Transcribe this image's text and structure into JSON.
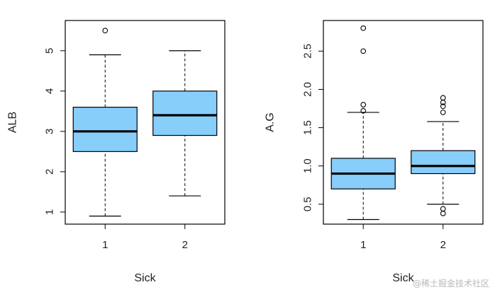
{
  "chart_data": [
    {
      "type": "box",
      "xlabel": "Sick",
      "ylabel": "ALB",
      "ylim": [
        0.7,
        5.75
      ],
      "y_ticks": [
        1,
        2,
        3,
        4,
        5
      ],
      "categories": [
        "1",
        "2"
      ],
      "boxes": [
        {
          "category": "1",
          "whisker_low": 0.9,
          "q1": 2.5,
          "median": 3.0,
          "q3": 3.6,
          "whisker_high": 4.9,
          "outliers": [
            5.5
          ]
        },
        {
          "category": "2",
          "whisker_low": 1.4,
          "q1": 2.9,
          "median": 3.4,
          "q3": 4.0,
          "whisker_high": 5.0,
          "outliers": []
        }
      ],
      "fill_color": "#87CEFA"
    },
    {
      "type": "box",
      "xlabel": "Sick",
      "ylabel": "A.G",
      "ylim": [
        0.24,
        2.9
      ],
      "y_ticks": [
        0.5,
        1.0,
        1.5,
        2.0,
        2.5
      ],
      "y_tick_labels": [
        "0.5",
        "1.0",
        "1.5",
        "2.0",
        "2.5"
      ],
      "categories": [
        "1",
        "2"
      ],
      "boxes": [
        {
          "category": "1",
          "whisker_low": 0.3,
          "q1": 0.7,
          "median": 0.9,
          "q3": 1.1,
          "whisker_high": 1.7,
          "outliers": [
            1.72,
            1.8,
            2.5,
            2.8
          ]
        },
        {
          "category": "2",
          "whisker_low": 0.5,
          "q1": 0.9,
          "median": 1.0,
          "q3": 1.2,
          "whisker_high": 1.58,
          "outliers": [
            0.38,
            0.44,
            1.7,
            1.78,
            1.83,
            1.89
          ]
        }
      ],
      "fill_color": "#87CEFA"
    }
  ],
  "watermark": "@稀土掘金技术社区"
}
